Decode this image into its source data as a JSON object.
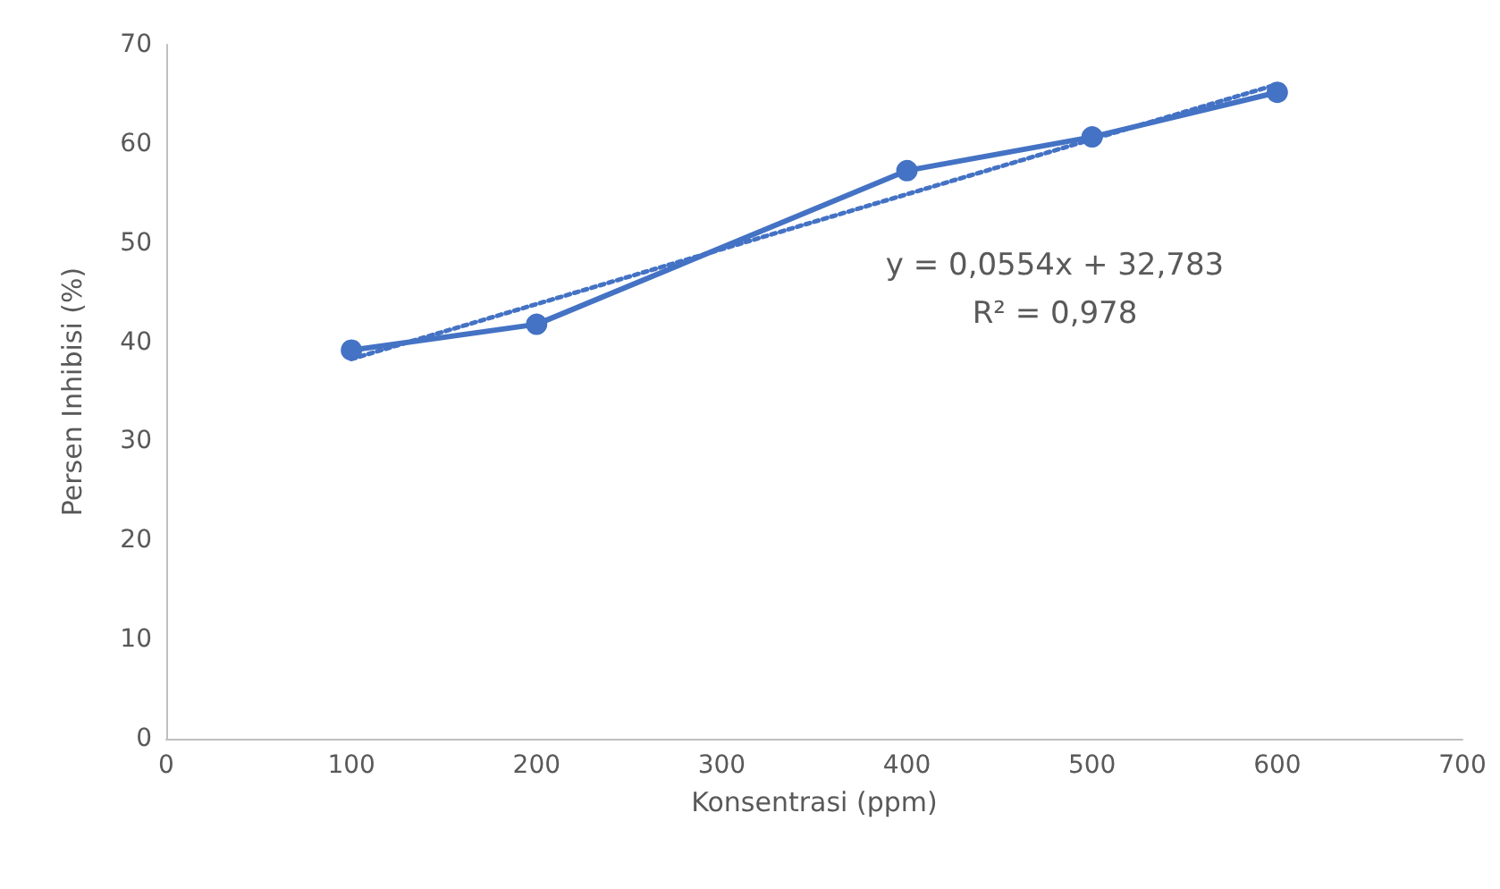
{
  "chart_data": {
    "type": "line",
    "xlabel": "Konsentrasi (ppm)",
    "ylabel": "Persen Inhibisi (%)",
    "annotations": [
      "y = 0,0554x + 32,783",
      "R² = 0,978"
    ],
    "series": [
      {
        "color": "#4472c4",
        "x": [
          100,
          200,
          400,
          500,
          600
        ],
        "values": [
          39.2,
          41.8,
          57.3,
          60.7,
          65.2
        ],
        "marker": "circle",
        "line_style": "solid"
      },
      {
        "color": "#4472c4",
        "x": [
          100,
          600
        ],
        "values": [
          38.3,
          66.0
        ],
        "marker": "none",
        "line_style": "dotted"
      }
    ],
    "xlim": [
      0,
      700
    ],
    "xticks": [
      0,
      100,
      200,
      300,
      400,
      500,
      600,
      700
    ],
    "ylim": [
      0,
      70
    ],
    "yticks": [
      0,
      10,
      20,
      30,
      40,
      50,
      60,
      70
    ],
    "grid": false
  }
}
